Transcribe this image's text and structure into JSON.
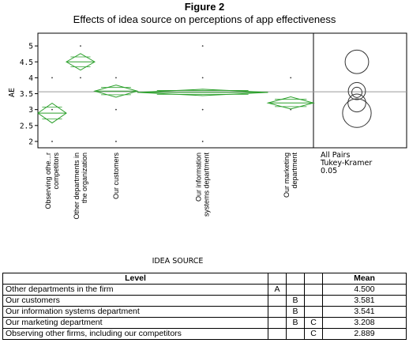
{
  "figure": {
    "label": "Figure 2",
    "title": "Effects of idea source on perceptions of app effectiveness"
  },
  "chart_data": {
    "type": "scatter",
    "subtype": "one-way ANOVA means diamonds with comparison circles",
    "xlabel": "IDEA SOURCE",
    "ylabel": "AE",
    "ylim": [
      1.8,
      5.4
    ],
    "yticks": [
      2,
      2.5,
      3,
      3.5,
      4,
      4.5,
      5
    ],
    "ytick_labels": [
      "2",
      "2.5",
      "3",
      "3.5",
      "4",
      "4.5",
      "5"
    ],
    "grand_mean": 3.56,
    "groups": [
      {
        "label": "Observing othe...r competitors",
        "mean": 2.889,
        "ci": [
          2.58,
          3.2
        ],
        "points": [
          2,
          3,
          4
        ],
        "width": 1.0
      },
      {
        "label": "Other departments in the organization",
        "mean": 4.5,
        "ci": [
          4.24,
          4.76
        ],
        "points": [
          4,
          5
        ],
        "width": 1.0
      },
      {
        "label": "Our customers",
        "mean": 3.581,
        "ci": [
          3.39,
          3.77
        ],
        "points": [
          2,
          3,
          4
        ],
        "width": 1.5
      },
      {
        "label": "Our information systems department",
        "mean": 3.541,
        "ci": [
          3.44,
          3.64
        ],
        "points": [
          2,
          3,
          4,
          5
        ],
        "width": 4.6
      },
      {
        "label": "Our marketing department",
        "mean": 3.208,
        "ci": [
          3.02,
          3.4
        ],
        "points": [
          3,
          4
        ],
        "width": 1.6
      }
    ],
    "circles_label": [
      "All Pairs",
      "Tukey-Kramer",
      "0.05"
    ],
    "circles": [
      {
        "center": 4.5,
        "radius": 0.37
      },
      {
        "center": 3.581,
        "radius": 0.27
      },
      {
        "center": 3.541,
        "radius": 0.16
      },
      {
        "center": 3.208,
        "radius": 0.28
      },
      {
        "center": 2.889,
        "radius": 0.45
      }
    ],
    "grid": false
  },
  "table": {
    "headers": {
      "level": "Level",
      "g1": "",
      "g2": "",
      "g3": "",
      "mean": "Mean"
    },
    "rows": [
      {
        "level": "Other departments in the firm",
        "g1": "A",
        "g2": "",
        "g3": "",
        "mean": "4.500"
      },
      {
        "level": "Our customers",
        "g1": "",
        "g2": "B",
        "g3": "",
        "mean": "3.581"
      },
      {
        "level": "Our information systems department",
        "g1": "",
        "g2": "B",
        "g3": "",
        "mean": "3.541"
      },
      {
        "level": "Our marketing department",
        "g1": "",
        "g2": "B",
        "g3": "C",
        "mean": "3.208"
      },
      {
        "level": "Observing other firms, including our competitors",
        "g1": "",
        "g2": "",
        "g3": "C",
        "mean": "2.889"
      }
    ]
  },
  "colors": {
    "diamond": "#2ca02c",
    "mean_line": "#9a9a9a",
    "frame": "#000000",
    "points": "#333333"
  }
}
